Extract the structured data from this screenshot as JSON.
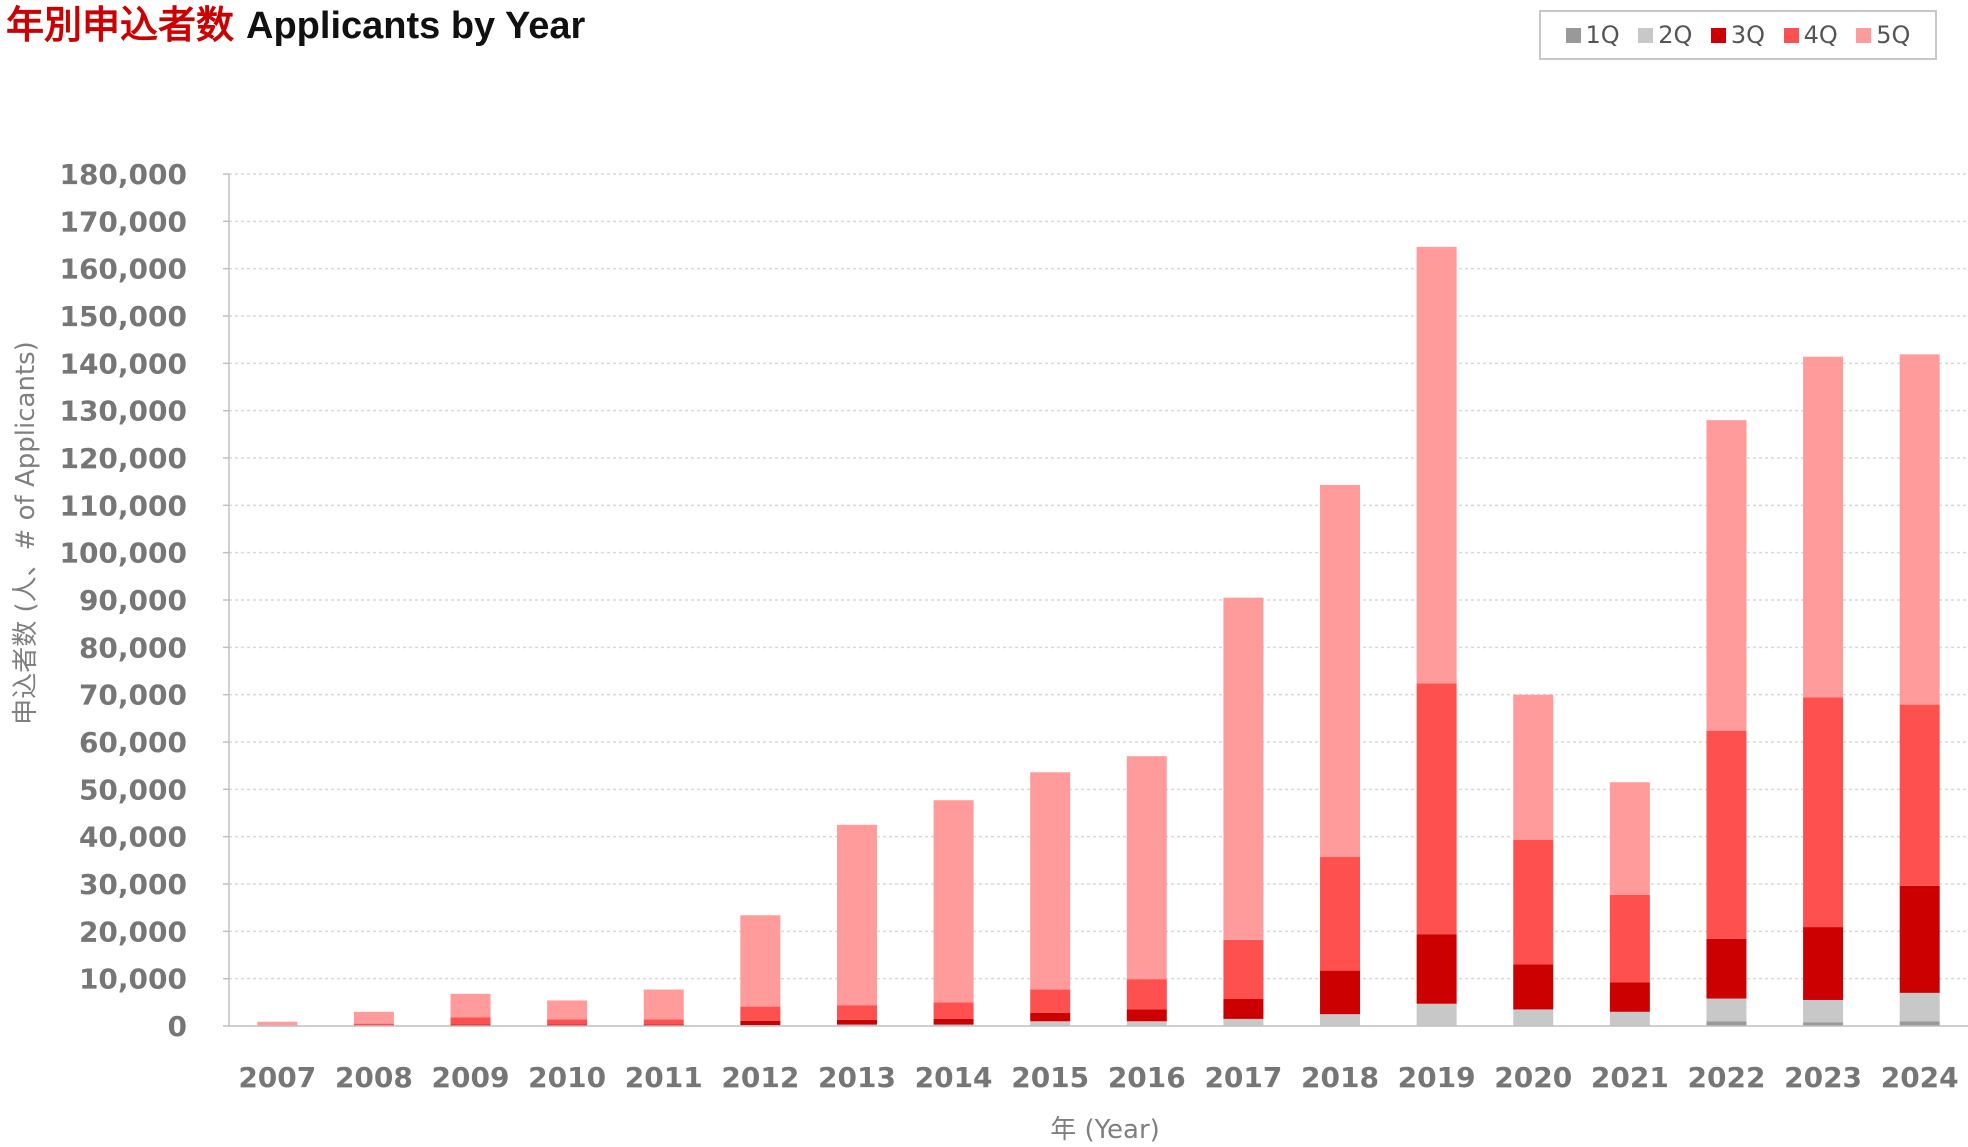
{
  "title": {
    "ja": "年別申込者数",
    "en": "Applicants by Year"
  },
  "chart_data": {
    "type": "bar",
    "stacked": true,
    "xlabel": "年 (Year)",
    "ylabel": "申込者数 (人、# of Applicants)",
    "ylim": [
      0,
      180000
    ],
    "yticks": [
      0,
      10000,
      20000,
      30000,
      40000,
      50000,
      60000,
      70000,
      80000,
      90000,
      100000,
      110000,
      120000,
      130000,
      140000,
      150000,
      160000,
      170000,
      180000
    ],
    "ytick_labels": [
      "0",
      "10,000",
      "20,000",
      "30,000",
      "40,000",
      "50,000",
      "60,000",
      "70,000",
      "80,000",
      "90,000",
      "100,000",
      "110,000",
      "120,000",
      "130,000",
      "140,000",
      "150,000",
      "160,000",
      "170,000",
      "180,000"
    ],
    "grid": true,
    "legend": "top-right",
    "categories": [
      "2007",
      "2008",
      "2009",
      "2010",
      "2011",
      "2012",
      "2013",
      "2014",
      "2015",
      "2016",
      "2017",
      "2018",
      "2019",
      "2020",
      "2021",
      "2022",
      "2023",
      "2024"
    ],
    "series": [
      {
        "name": "1Q",
        "color": "#999999",
        "values": [
          0,
          0,
          0,
          0,
          0,
          0,
          0,
          0,
          0,
          0,
          0,
          0,
          0,
          0,
          0,
          1000,
          800,
          1000
        ]
      },
      {
        "name": "2Q",
        "color": "#c8c8c8",
        "values": [
          0,
          0,
          0,
          0,
          0,
          200,
          300,
          300,
          1000,
          1000,
          1500,
          2500,
          4700,
          3500,
          3000,
          4800,
          4700,
          6000
        ]
      },
      {
        "name": "3Q",
        "color": "#cc0000",
        "values": [
          0,
          0,
          300,
          300,
          300,
          900,
          1000,
          1200,
          1800,
          2500,
          4200,
          9200,
          14700,
          9500,
          6200,
          12600,
          15400,
          22600
        ]
      },
      {
        "name": "4Q",
        "color": "#ff5050",
        "values": [
          100,
          500,
          1500,
          1100,
          1100,
          3000,
          3100,
          3500,
          4900,
          6400,
          12500,
          24000,
          53000,
          26300,
          18500,
          44000,
          48500,
          38300
        ]
      },
      {
        "name": "5Q",
        "color": "#ff9b9b",
        "values": [
          800,
          2500,
          5000,
          4000,
          6300,
          19300,
          38100,
          42700,
          45900,
          47100,
          72300,
          78600,
          92200,
          30700,
          23800,
          65600,
          72000,
          74000
        ]
      }
    ]
  }
}
